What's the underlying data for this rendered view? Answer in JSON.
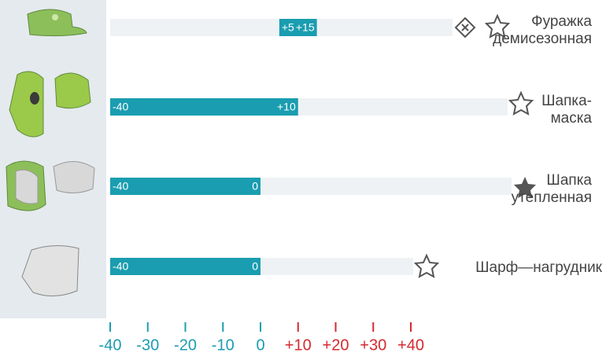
{
  "chart_data": {
    "type": "range-bar",
    "categories": [
      [
        "Фуражка",
        "демисезонная"
      ],
      [
        "Шапка-",
        "маска"
      ],
      [
        "Шапка",
        "утепленная"
      ],
      [
        "Шарф—нагрудник"
      ]
    ],
    "values": [
      [
        5,
        15
      ],
      [
        -40,
        10
      ],
      [
        -40,
        0
      ],
      [
        -40,
        0
      ]
    ],
    "value_labels": [
      [
        "+5",
        "+15"
      ],
      [
        "-40",
        "+10"
      ],
      [
        "-40",
        "0"
      ],
      [
        "-40",
        "0"
      ]
    ],
    "color": "#1a9db0",
    "xlim": [
      -40,
      40
    ],
    "xticks": [
      -40,
      -30,
      -20,
      -10,
      0,
      {
        "value": 10,
        "label": "+10"
      },
      {
        "value": 20,
        "label": "+20"
      },
      {
        "value": 30,
        "label": "+30"
      },
      {
        "value": 40,
        "label": "+40"
      }
    ],
    "negative_color": "#1a9db0",
    "positive_color": "#d42a2f"
  }
}
